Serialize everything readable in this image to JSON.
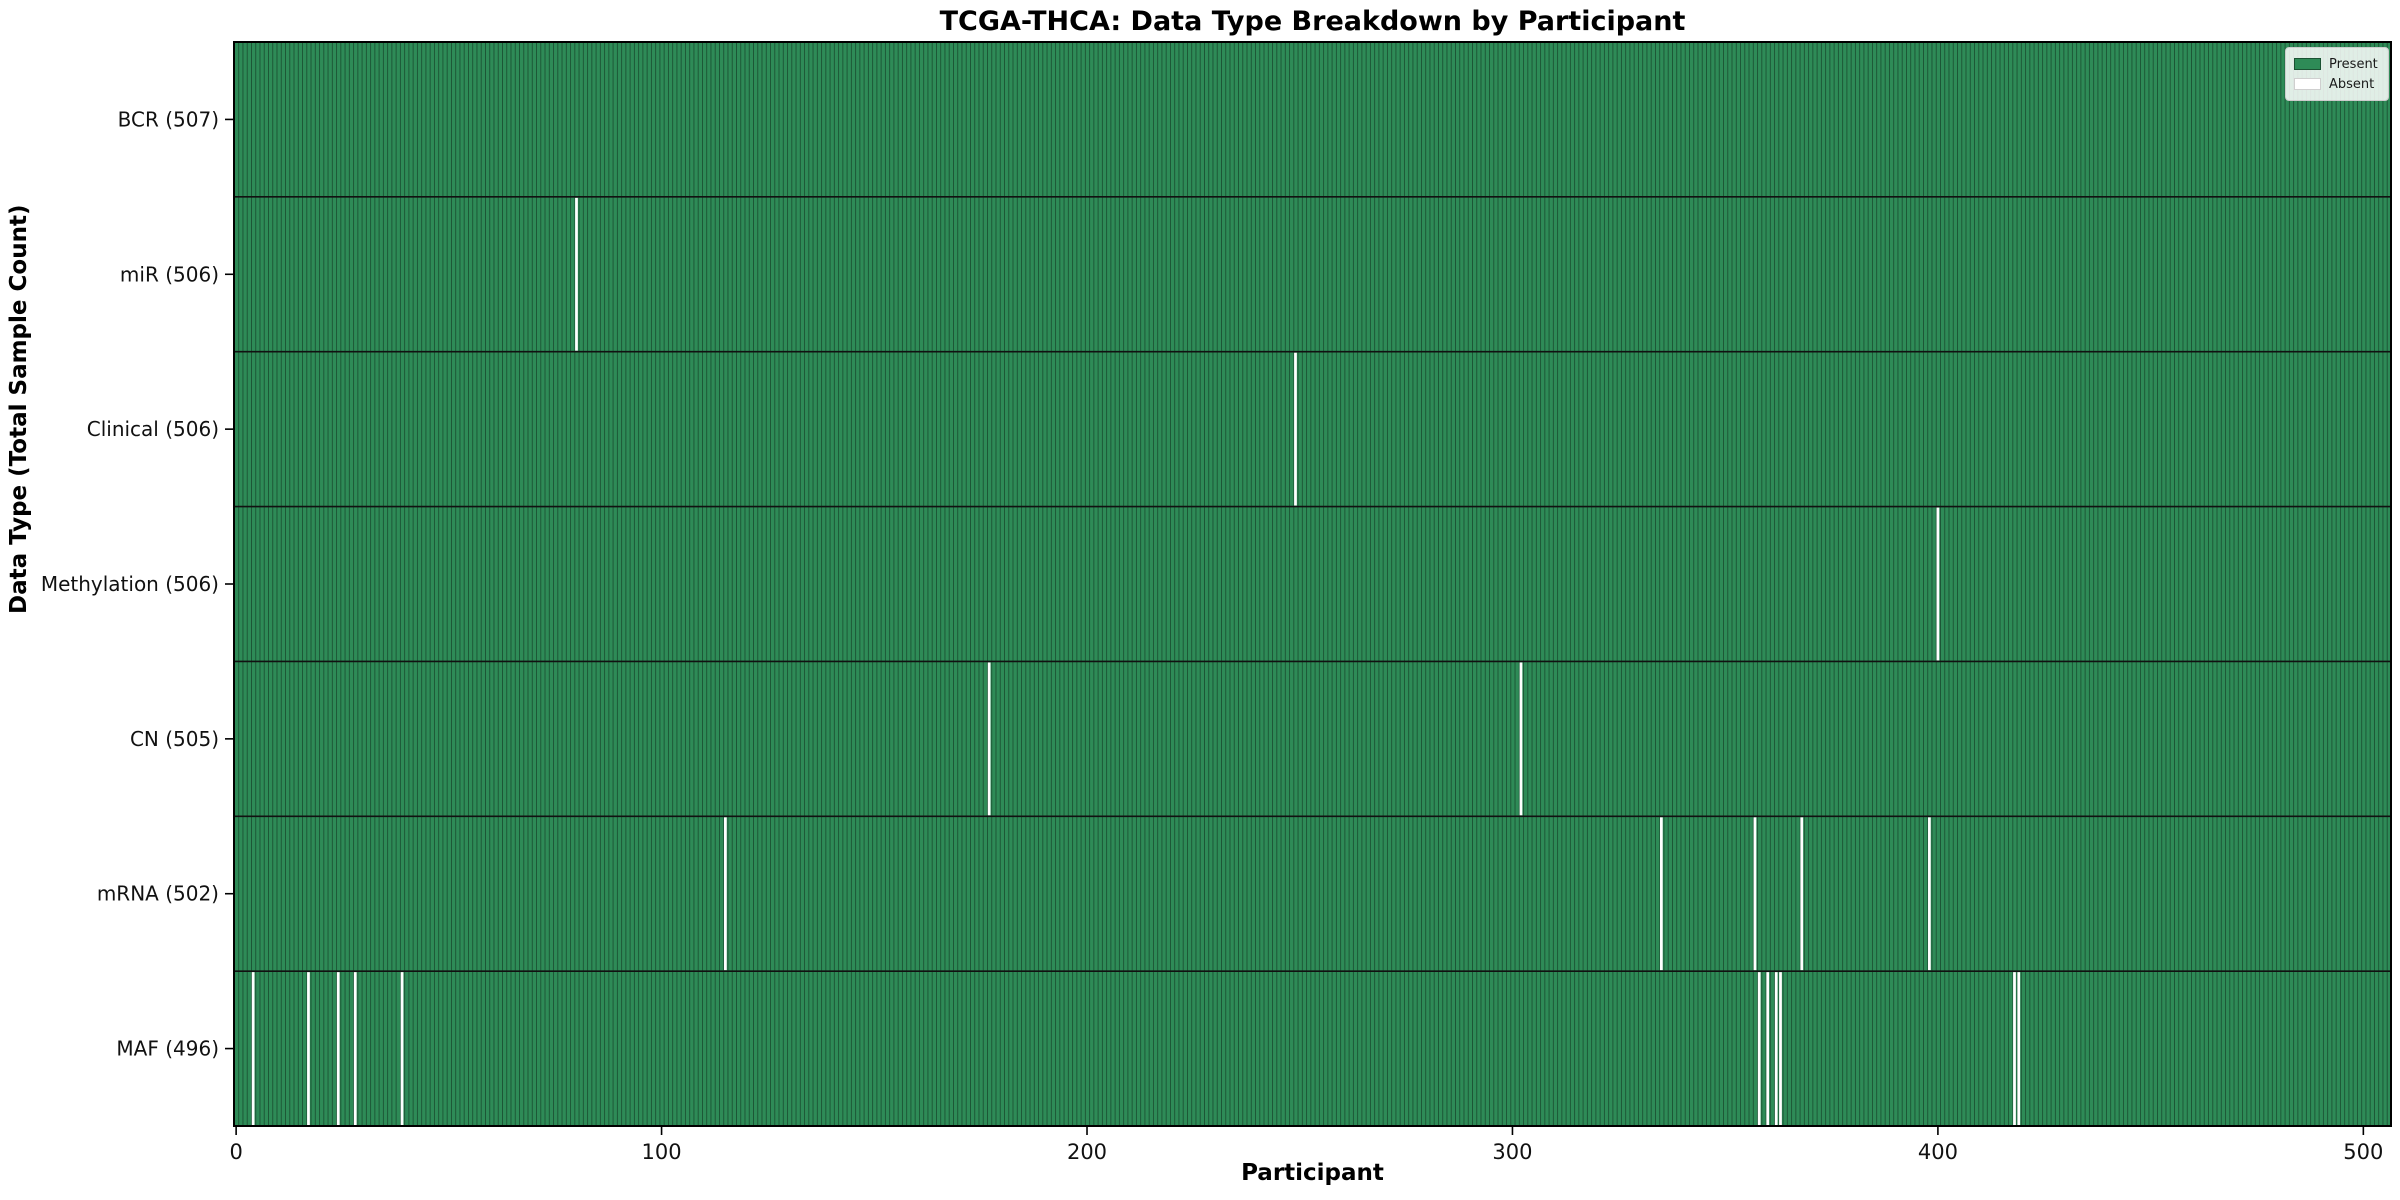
{
  "figure": {
    "title": "TCGA-THCA: Data Type Breakdown by Participant",
    "xlabel": "Participant",
    "ylabel": "Data Type (Total Sample Count)"
  },
  "chart_data": {
    "type": "heatmap",
    "title": "TCGA-THCA: Data Type Breakdown by Participant",
    "xlabel": "Participant",
    "ylabel": "Data Type (Total Sample Count)",
    "x_ticks": [
      0,
      100,
      200,
      300,
      400,
      500
    ],
    "x_range": [
      0,
      507
    ],
    "total_participants": 507,
    "grid": false,
    "legend_position": "upper right",
    "rows": [
      {
        "data_type": "BCR",
        "label": "BCR (507)",
        "present_count": 507,
        "absent_participants": []
      },
      {
        "data_type": "miR",
        "label": "miR (506)",
        "present_count": 506,
        "absent_participants": [
          80
        ]
      },
      {
        "data_type": "Clinical",
        "label": "Clinical (506)",
        "present_count": 506,
        "absent_participants": [
          249
        ]
      },
      {
        "data_type": "Methylation",
        "label": "Methylation (506)",
        "present_count": 506,
        "absent_participants": [
          400
        ]
      },
      {
        "data_type": "CN",
        "label": "CN (505)",
        "present_count": 505,
        "absent_participants": [
          177,
          302
        ]
      },
      {
        "data_type": "mRNA",
        "label": "mRNA (502)",
        "present_count": 502,
        "absent_participants": [
          115,
          335,
          357,
          368,
          398
        ]
      },
      {
        "data_type": "MAF",
        "label": "MAF (496)",
        "present_count": 496,
        "absent_participants": [
          4,
          17,
          24,
          28,
          39,
          358,
          360,
          362,
          363,
          418,
          419
        ]
      }
    ],
    "legend": {
      "entries": [
        {
          "label": "Present",
          "color": "#2e8b57"
        },
        {
          "label": "Absent",
          "color": "#ffffff"
        }
      ]
    },
    "colors": {
      "present": "#2e8b57",
      "bar_edge": "#1b5233",
      "absent": "#ffffff",
      "separator": "#111111",
      "spine": "#000000"
    }
  }
}
